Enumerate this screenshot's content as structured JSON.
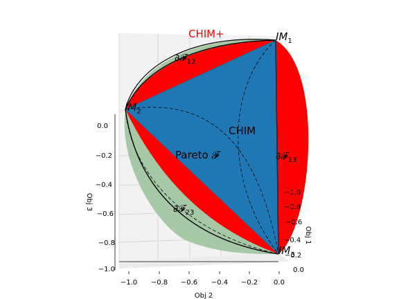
{
  "figure": {
    "labels": {
      "chim_plus": "CHIM+",
      "chim": "CHIM",
      "pareto": "Pareto 𝓕",
      "im1": "IM",
      "im1_sub": "1",
      "im2": "IM",
      "im2_sub": "2",
      "im3": "IM",
      "im3_sub": "3",
      "f12": "∂𝓕",
      "f12_sub": "12",
      "f13": "∂𝓕",
      "f13_sub": "13",
      "f23": "∂𝓕",
      "f23_sub": "23"
    },
    "axes": {
      "obj2_label": "Obj 2",
      "obj3_label": "Obj 3",
      "obj1_label": "Obj 1",
      "obj2_ticks": [
        "−1.0",
        "−0.8",
        "−0.6",
        "−0.4",
        "−0.2",
        "0.0"
      ],
      "obj3_ticks": [
        "0.0",
        "−0.2",
        "−0.4",
        "−0.6",
        "−0.8",
        "−1.0"
      ],
      "obj1_ticks": [
        "0.0",
        "−0.2",
        "−0.4",
        "−0.6",
        "−0.8",
        "−1.0"
      ]
    },
    "colors": {
      "chim_plus": "#ff0000",
      "pareto_fill": "#1f77b4",
      "sphere_fill": "#8fbc8f",
      "pane": "#f2f2f2",
      "grid": "#d0d0d0"
    }
  }
}
